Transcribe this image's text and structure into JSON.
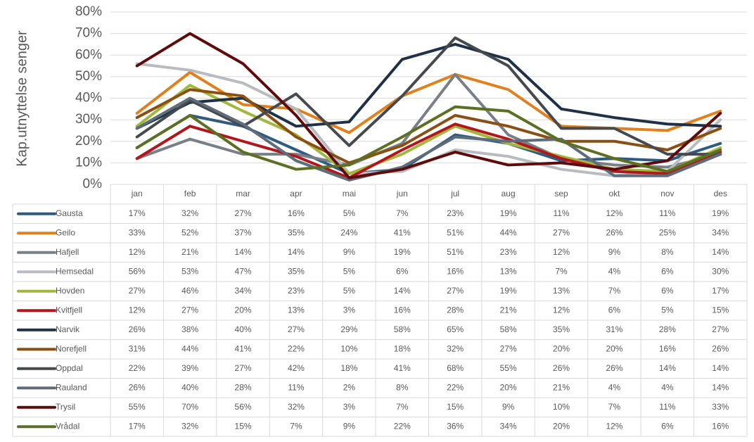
{
  "chart_data": {
    "type": "line",
    "y_label": "Kap.utnyttelse senger",
    "categories": [
      "jan",
      "feb",
      "mar",
      "apr",
      "mai",
      "jun",
      "jul",
      "aug",
      "sep",
      "okt",
      "nov",
      "des"
    ],
    "ylim": [
      0,
      80
    ],
    "yticks": [
      {
        "value": 0,
        "label": "0%"
      },
      {
        "value": 10,
        "label": "10%"
      },
      {
        "value": 20,
        "label": "20%"
      },
      {
        "value": 30,
        "label": "30%"
      },
      {
        "value": 40,
        "label": "40%"
      },
      {
        "value": 50,
        "label": "50%"
      },
      {
        "value": 60,
        "label": "60%"
      },
      {
        "value": 70,
        "label": "70%"
      },
      {
        "value": 80,
        "label": "80%"
      }
    ],
    "grid": true,
    "series": [
      {
        "name": "Gausta",
        "color": "#2f5b80",
        "values": [
          17,
          32,
          27,
          16,
          5,
          7,
          23,
          19,
          11,
          12,
          11,
          19
        ],
        "value_labels": [
          "17%",
          "32%",
          "27%",
          "16%",
          "5%",
          "7%",
          "23%",
          "19%",
          "11%",
          "12%",
          "11%",
          "19%"
        ]
      },
      {
        "name": "Geilo",
        "color": "#e0801f",
        "values": [
          33,
          52,
          37,
          35,
          24,
          41,
          51,
          44,
          27,
          26,
          25,
          34
        ],
        "value_labels": [
          "33%",
          "52%",
          "37%",
          "35%",
          "24%",
          "41%",
          "51%",
          "44%",
          "27%",
          "26%",
          "25%",
          "34%"
        ]
      },
      {
        "name": "Hafjell",
        "color": "#787f87",
        "values": [
          12,
          21,
          14,
          14,
          9,
          19,
          51,
          23,
          12,
          9,
          8,
          14
        ],
        "value_labels": [
          "12%",
          "21%",
          "14%",
          "14%",
          "9%",
          "19%",
          "51%",
          "23%",
          "12%",
          "9%",
          "8%",
          "14%"
        ]
      },
      {
        "name": "Hemsedal",
        "color": "#b8bbbf",
        "values": [
          56,
          53,
          47,
          35,
          5,
          6,
          16,
          13,
          7,
          4,
          6,
          30
        ],
        "value_labels": [
          "56%",
          "53%",
          "47%",
          "35%",
          "5%",
          "6%",
          "16%",
          "13%",
          "7%",
          "4%",
          "6%",
          "30%"
        ]
      },
      {
        "name": "Hovden",
        "color": "#a2b83c",
        "values": [
          27,
          46,
          34,
          23,
          5,
          14,
          27,
          19,
          13,
          7,
          6,
          17
        ],
        "value_labels": [
          "27%",
          "46%",
          "34%",
          "23%",
          "5%",
          "14%",
          "27%",
          "19%",
          "13%",
          "7%",
          "6%",
          "17%"
        ]
      },
      {
        "name": "Kvitfjell",
        "color": "#b0161b",
        "values": [
          12,
          27,
          20,
          13,
          3,
          16,
          28,
          21,
          12,
          6,
          5,
          15
        ],
        "value_labels": [
          "12%",
          "27%",
          "20%",
          "13%",
          "3%",
          "16%",
          "28%",
          "21%",
          "12%",
          "6%",
          "5%",
          "15%"
        ]
      },
      {
        "name": "Narvik",
        "color": "#1f3146",
        "values": [
          26,
          38,
          40,
          27,
          29,
          58,
          65,
          58,
          35,
          31,
          28,
          27
        ],
        "value_labels": [
          "26%",
          "38%",
          "40%",
          "27%",
          "29%",
          "58%",
          "65%",
          "58%",
          "35%",
          "31%",
          "28%",
          "27%"
        ]
      },
      {
        "name": "Norefjell",
        "color": "#8a5013",
        "values": [
          31,
          44,
          41,
          22,
          10,
          18,
          32,
          27,
          20,
          20,
          16,
          26
        ],
        "value_labels": [
          "31%",
          "44%",
          "41%",
          "22%",
          "10%",
          "18%",
          "32%",
          "27%",
          "20%",
          "20%",
          "16%",
          "26%"
        ]
      },
      {
        "name": "Oppdal",
        "color": "#46494d",
        "values": [
          22,
          39,
          27,
          42,
          18,
          41,
          68,
          55,
          26,
          26,
          14,
          14
        ],
        "value_labels": [
          "22%",
          "39%",
          "27%",
          "42%",
          "18%",
          "41%",
          "68%",
          "55%",
          "26%",
          "26%",
          "14%",
          "14%"
        ]
      },
      {
        "name": "Rauland",
        "color": "#5f6c79",
        "values": [
          26,
          40,
          28,
          11,
          2,
          8,
          22,
          20,
          21,
          4,
          4,
          14
        ],
        "value_labels": [
          "26%",
          "40%",
          "28%",
          "11%",
          "2%",
          "8%",
          "22%",
          "20%",
          "21%",
          "4%",
          "4%",
          "14%"
        ]
      },
      {
        "name": "Trysil",
        "color": "#5e0b0b",
        "values": [
          55,
          70,
          56,
          32,
          3,
          7,
          15,
          9,
          10,
          7,
          11,
          33
        ],
        "value_labels": [
          "55%",
          "70%",
          "56%",
          "32%",
          "3%",
          "7%",
          "15%",
          "9%",
          "10%",
          "7%",
          "11%",
          "33%"
        ]
      },
      {
        "name": "Vrådal",
        "color": "#5d6f23",
        "values": [
          17,
          32,
          15,
          7,
          9,
          22,
          36,
          34,
          20,
          12,
          6,
          16
        ],
        "value_labels": [
          "17%",
          "32%",
          "15%",
          "7%",
          "9%",
          "22%",
          "36%",
          "34%",
          "20%",
          "12%",
          "6%",
          "16%"
        ]
      }
    ]
  }
}
